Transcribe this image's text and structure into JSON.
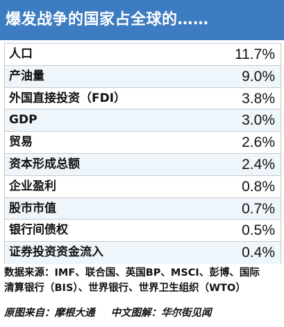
{
  "header": {
    "title": "爆发战争的国家占全球的……"
  },
  "chart_data": {
    "type": "table",
    "title": "爆发战争的国家占全球的……",
    "rows": [
      {
        "label": "人口",
        "value": "11.7%"
      },
      {
        "label": "产油量",
        "value": "9.0%"
      },
      {
        "label": "外国直接投资（FDI）",
        "value": "3.8%"
      },
      {
        "label": "GDP",
        "value": "3.0%"
      },
      {
        "label": "贸易",
        "value": "2.6%"
      },
      {
        "label": "资本形成总额",
        "value": "2.4%"
      },
      {
        "label": "企业盈利",
        "value": "0.8%"
      },
      {
        "label": "股市市值",
        "value": "0.7%"
      },
      {
        "label": "银行间债权",
        "value": "0.5%"
      },
      {
        "label": "证券投资资金流入",
        "value": "0.4%"
      }
    ]
  },
  "footer": {
    "source_line1": "数据来源：IMF、联合国、英国BP、MSCI、彭博、国际",
    "source_line2": "清算银行（BIS）、世界银行、世界卫生组织（WTO）",
    "credit_original": "原图来自：摩根大通",
    "credit_translation": "中文图解：华尔街见闻"
  }
}
